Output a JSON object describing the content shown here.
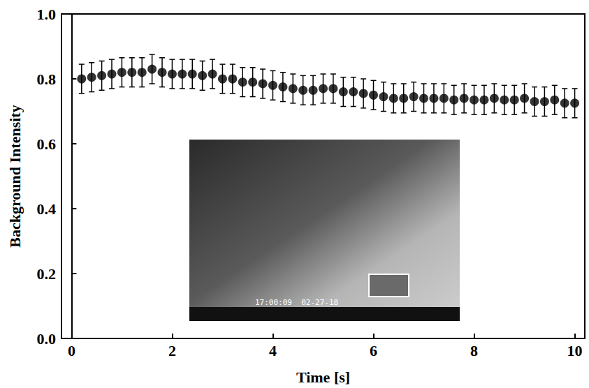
{
  "chart_data": {
    "type": "scatter",
    "x_label": "Time [s]",
    "y_label": "Background Intensity",
    "x": [
      0.2,
      0.4,
      0.6,
      0.8,
      1.0,
      1.2,
      1.4,
      1.6,
      1.8,
      2.0,
      2.2,
      2.4,
      2.6,
      2.8,
      3.0,
      3.2,
      3.4,
      3.6,
      3.8,
      4.0,
      4.2,
      4.4,
      4.6,
      4.8,
      5.0,
      5.2,
      5.4,
      5.6,
      5.8,
      6.0,
      6.2,
      6.4,
      6.6,
      6.8,
      7.0,
      7.2,
      7.4,
      7.6,
      7.8,
      8.0,
      8.2,
      8.4,
      8.6,
      8.8,
      9.0,
      9.2,
      9.4,
      9.6,
      9.8,
      10.0
    ],
    "values": [
      0.8,
      0.805,
      0.81,
      0.815,
      0.82,
      0.82,
      0.82,
      0.83,
      0.82,
      0.815,
      0.815,
      0.815,
      0.81,
      0.815,
      0.8,
      0.8,
      0.79,
      0.79,
      0.785,
      0.78,
      0.775,
      0.77,
      0.765,
      0.765,
      0.77,
      0.77,
      0.76,
      0.76,
      0.755,
      0.75,
      0.745,
      0.74,
      0.74,
      0.745,
      0.74,
      0.74,
      0.74,
      0.735,
      0.74,
      0.735,
      0.735,
      0.74,
      0.735,
      0.735,
      0.74,
      0.73,
      0.73,
      0.735,
      0.725,
      0.725
    ],
    "errors": [
      0.045,
      0.045,
      0.045,
      0.045,
      0.045,
      0.045,
      0.045,
      0.045,
      0.045,
      0.045,
      0.045,
      0.045,
      0.045,
      0.045,
      0.045,
      0.045,
      0.045,
      0.045,
      0.045,
      0.045,
      0.045,
      0.045,
      0.045,
      0.045,
      0.045,
      0.045,
      0.045,
      0.045,
      0.045,
      0.045,
      0.045,
      0.045,
      0.045,
      0.045,
      0.045,
      0.045,
      0.045,
      0.045,
      0.045,
      0.045,
      0.045,
      0.045,
      0.045,
      0.045,
      0.045,
      0.045,
      0.045,
      0.045,
      0.045,
      0.045
    ],
    "color": "#000000",
    "marker": "circle",
    "xlim": [
      -0.2,
      10.2
    ],
    "xticks": [
      0,
      2,
      4,
      6,
      8,
      10
    ],
    "ylim": [
      0,
      1
    ],
    "yticks": [
      {
        "value": 0,
        "label": "0.0"
      },
      0.2,
      0.4,
      0.6,
      0.8,
      {
        "value": 1,
        "label": "1.0"
      }
    ],
    "grid": false,
    "annotations": [
      {
        "text": "17:00:09  02-27-18"
      }
    ]
  }
}
